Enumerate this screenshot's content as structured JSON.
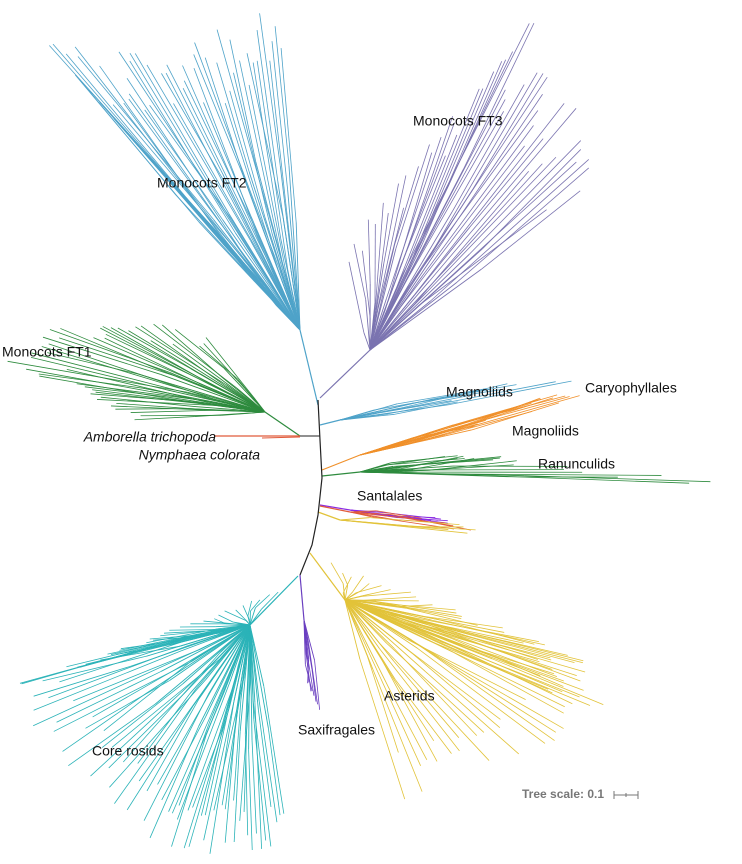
{
  "labels": [
    "Monocots FT3",
    "Monocots FT2",
    "Monocots FT1",
    "Amborella trichopoda",
    "Nymphaea colorata",
    "Magnoliids",
    "Caryophyllales",
    "Magnoliids",
    "Ranunculids",
    "Santalales",
    "Asterids",
    "Saxifragales",
    "Core rosids"
  ],
  "tree_scale": "Tree scale: 0.1"
}
